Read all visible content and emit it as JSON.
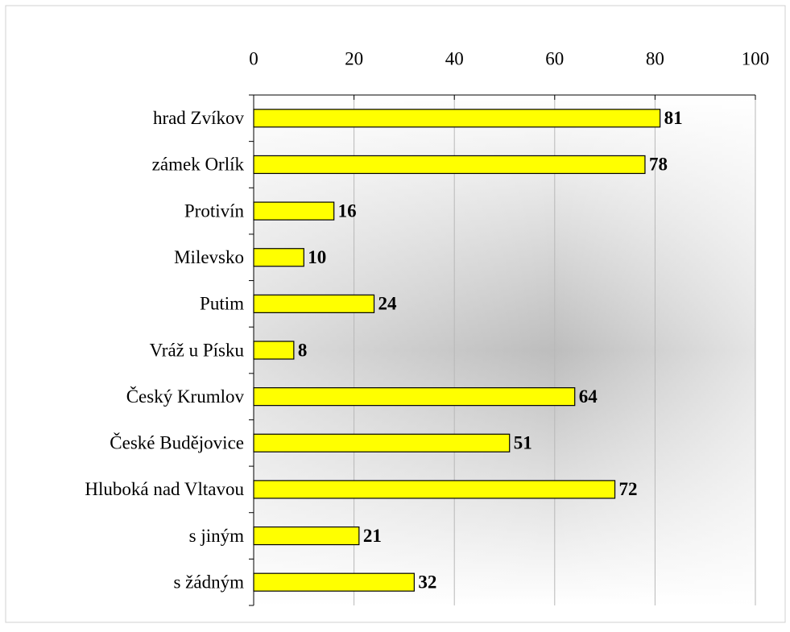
{
  "chart_data": {
    "type": "bar",
    "orientation": "horizontal",
    "categories": [
      "hrad Zvíkov",
      "zámek Orlík",
      "Protivín",
      "Milevsko",
      "Putim",
      "Vráž u Písku",
      "Český Krumlov",
      "České Budějovice",
      "Hluboká nad Vltavou",
      "s jiným",
      "s žádným"
    ],
    "values": [
      81,
      78,
      16,
      10,
      24,
      8,
      64,
      51,
      72,
      21,
      32
    ],
    "color": "#ffff00",
    "xlim": [
      0,
      100
    ],
    "xticks": [
      0,
      20,
      40,
      60,
      80,
      100
    ],
    "grid": true
  }
}
